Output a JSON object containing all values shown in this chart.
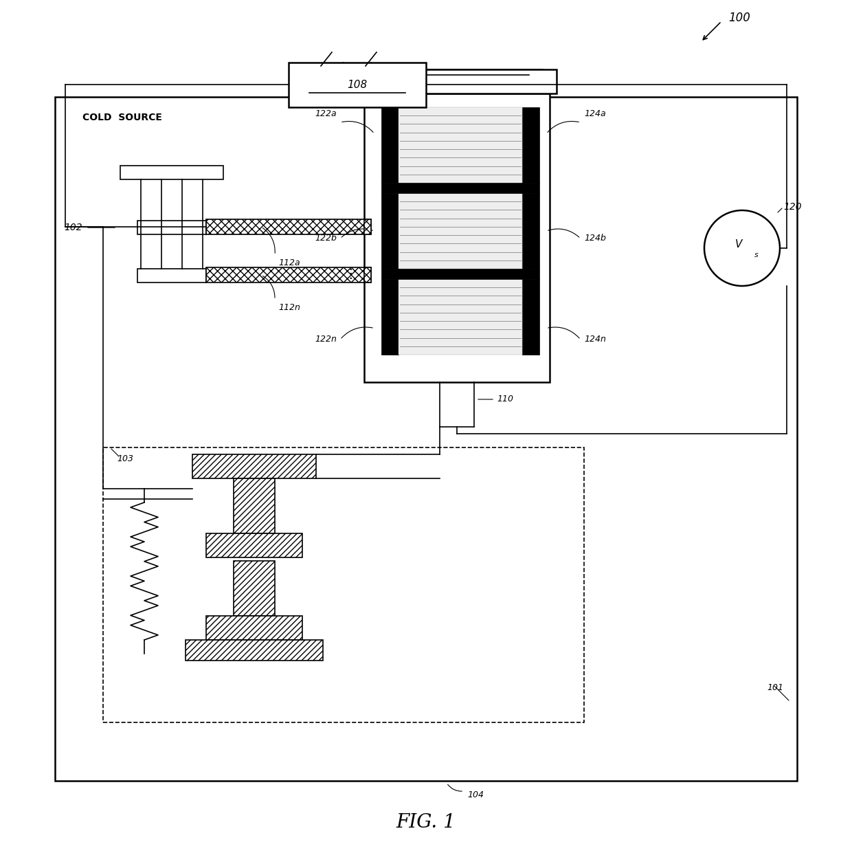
{
  "fig_label": "FIG. 1",
  "ref_100": "100",
  "ref_101": "101",
  "ref_102": "102",
  "ref_103": "103",
  "ref_104": "104",
  "ref_108": "108",
  "ref_110": "110",
  "ref_112a": "112a",
  "ref_112n": "112n",
  "ref_120": "120",
  "ref_122a": "122a",
  "ref_122b": "122b",
  "ref_122n": "122n",
  "ref_124a": "124a",
  "ref_124b": "124b",
  "ref_124n": "124n",
  "cold_source_label": "COLD  SOURCE",
  "vs_label": "V",
  "vs_sub": "s",
  "bg_color": "#ffffff",
  "line_color": "#000000"
}
